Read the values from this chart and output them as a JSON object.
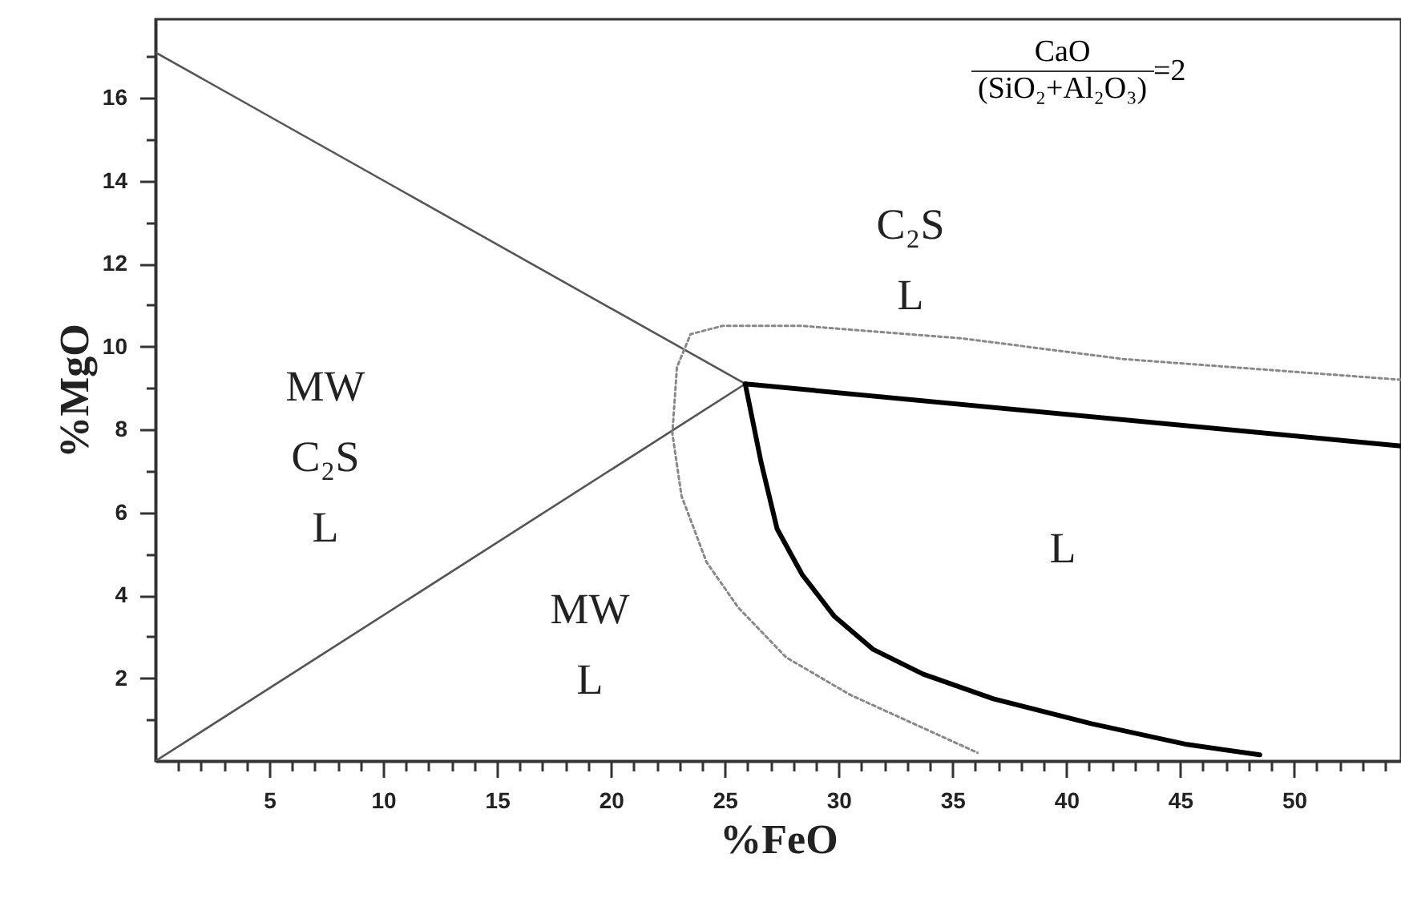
{
  "chart_data": {
    "type": "line",
    "xlabel": "%FeO",
    "ylabel": "%MgO",
    "xlim": [
      0,
      54.7
    ],
    "ylim": [
      0,
      17.9
    ],
    "xticks": [
      {
        "value": 1,
        "label": null
      },
      {
        "value": 2,
        "label": null
      },
      {
        "value": 3,
        "label": null
      },
      {
        "value": 4,
        "label": null
      },
      5,
      {
        "value": 6,
        "label": null
      },
      {
        "value": 7,
        "label": null
      },
      {
        "value": 8,
        "label": null
      },
      {
        "value": 9,
        "label": null
      },
      10,
      {
        "value": 11,
        "label": null
      },
      {
        "value": 12,
        "label": null
      },
      {
        "value": 13,
        "label": null
      },
      {
        "value": 14,
        "label": null
      },
      15,
      {
        "value": 16,
        "label": null
      },
      {
        "value": 17,
        "label": null
      },
      {
        "value": 18,
        "label": null
      },
      {
        "value": 19,
        "label": null
      },
      20,
      {
        "value": 21,
        "label": null
      },
      {
        "value": 22,
        "label": null
      },
      {
        "value": 23,
        "label": null
      },
      {
        "value": 24,
        "label": null
      },
      25,
      {
        "value": 26,
        "label": null
      },
      {
        "value": 27,
        "label": null
      },
      {
        "value": 28,
        "label": null
      },
      {
        "value": 29,
        "label": null
      },
      30,
      {
        "value": 31,
        "label": null
      },
      {
        "value": 32,
        "label": null
      },
      {
        "value": 33,
        "label": null
      },
      {
        "value": 34,
        "label": null
      },
      35,
      {
        "value": 36,
        "label": null
      },
      {
        "value": 37,
        "label": null
      },
      {
        "value": 38,
        "label": null
      },
      {
        "value": 39,
        "label": null
      },
      40,
      {
        "value": 41,
        "label": null
      },
      {
        "value": 42,
        "label": null
      },
      {
        "value": 43,
        "label": null
      },
      {
        "value": 44,
        "label": null
      },
      45,
      {
        "value": 46,
        "label": null
      },
      {
        "value": 47,
        "label": null
      },
      {
        "value": 48,
        "label": null
      },
      {
        "value": 49,
        "label": null
      },
      50,
      {
        "value": 51,
        "label": null
      },
      {
        "value": 52,
        "label": null
      },
      {
        "value": 53,
        "label": null
      },
      {
        "value": 54,
        "label": null
      }
    ],
    "yticks": [
      {
        "value": 1,
        "label": null
      },
      2,
      {
        "value": 3,
        "label": null
      },
      4,
      {
        "value": 5,
        "label": null
      },
      6,
      {
        "value": 7,
        "label": null
      },
      8,
      {
        "value": 9,
        "label": null
      },
      10,
      {
        "value": 11,
        "label": null
      },
      12,
      {
        "value": 13,
        "label": null
      },
      14,
      {
        "value": 15,
        "label": null
      },
      16,
      {
        "value": 17,
        "label": null
      }
    ],
    "marker": "none",
    "series": [
      {
        "color": "#555555",
        "line_style": "solid",
        "x": [
          0,
          25.9
        ],
        "values": [
          17.1,
          9.1
        ]
      },
      {
        "color": "#555555",
        "line_style": "solid",
        "x": [
          0,
          25.9
        ],
        "values": [
          0,
          9.1
        ]
      },
      {
        "color": "#000000",
        "line_style": "solid",
        "x": [
          25.9,
          54.7
        ],
        "values": [
          9.1,
          7.6
        ]
      },
      {
        "color": "#000000",
        "line_style": "solid",
        "x": [
          25.9,
          26.6,
          27.3,
          28.4,
          29.8,
          31.5,
          33.7,
          36.8,
          41.1,
          45.3,
          48.5
        ],
        "values": [
          9.1,
          7.2,
          5.6,
          4.5,
          3.5,
          2.7,
          2.1,
          1.5,
          0.9,
          0.4,
          0.15
        ]
      },
      {
        "color": "#888888",
        "line_style": "dotted",
        "x": [
          54.7,
          42.5,
          35.4,
          28.4,
          24.9,
          23.5,
          22.9,
          22.7,
          23.1,
          24.2,
          25.6,
          27.7,
          30.5,
          33.3,
          36.1
        ],
        "values": [
          9.2,
          9.7,
          10.2,
          10.5,
          10.5,
          10.3,
          9.5,
          7.9,
          6.4,
          4.8,
          3.7,
          2.5,
          1.6,
          0.9,
          0.2
        ]
      }
    ],
    "annotations": [
      "MW\nC₂S\nL",
      "MW\nL",
      "C₂S\nL",
      "L",
      "CaO",
      "(SiO₂+Al₂O₃)",
      "=2"
    ]
  }
}
